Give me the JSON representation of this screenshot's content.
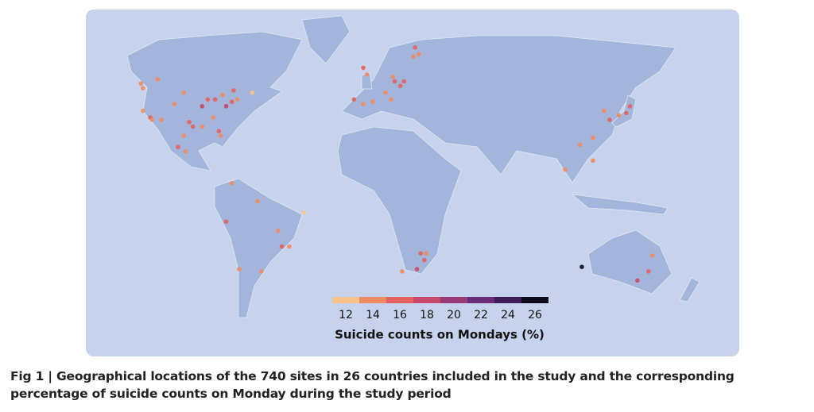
{
  "map": {
    "legend": {
      "title": "Suicide counts on Mondays (%)",
      "ticks": [
        12,
        14,
        16,
        18,
        20,
        22,
        24,
        26
      ],
      "colors": [
        "#f8c28a",
        "#ef8b62",
        "#e3625f",
        "#c8476c",
        "#993b78",
        "#6a2c79",
        "#3b1d58",
        "#0e0a1c"
      ]
    },
    "sites": [
      {
        "lon": -122,
        "lat": 37,
        "value": 15
      },
      {
        "lon": -118,
        "lat": 34,
        "value": 16
      },
      {
        "lon": -117,
        "lat": 33,
        "value": 14
      },
      {
        "lon": -112,
        "lat": 33,
        "value": 15
      },
      {
        "lon": -105,
        "lat": 40,
        "value": 14
      },
      {
        "lon": -97,
        "lat": 32,
        "value": 16
      },
      {
        "lon": -95,
        "lat": 30,
        "value": 17
      },
      {
        "lon": -90,
        "lat": 30,
        "value": 15
      },
      {
        "lon": -87,
        "lat": 42,
        "value": 16
      },
      {
        "lon": -84,
        "lat": 34,
        "value": 15
      },
      {
        "lon": -80,
        "lat": 26,
        "value": 14
      },
      {
        "lon": -77,
        "lat": 39,
        "value": 19
      },
      {
        "lon": -74,
        "lat": 41,
        "value": 16
      },
      {
        "lon": -71,
        "lat": 42,
        "value": 15
      },
      {
        "lon": -83,
        "lat": 42,
        "value": 16
      },
      {
        "lon": -90,
        "lat": 39,
        "value": 18
      },
      {
        "lon": -100,
        "lat": 45,
        "value": 14
      },
      {
        "lon": -122,
        "lat": 47,
        "value": 15
      },
      {
        "lon": -81,
        "lat": 28,
        "value": 16
      },
      {
        "lon": -79,
        "lat": 44,
        "value": 15
      },
      {
        "lon": -73,
        "lat": 46,
        "value": 16
      },
      {
        "lon": -114,
        "lat": 51,
        "value": 14
      },
      {
        "lon": -123,
        "lat": 49,
        "value": 15
      },
      {
        "lon": -63,
        "lat": 45,
        "value": 13
      },
      {
        "lon": -99,
        "lat": 19,
        "value": 15
      },
      {
        "lon": -103,
        "lat": 21,
        "value": 16
      },
      {
        "lon": -100,
        "lat": 26,
        "value": 14
      },
      {
        "lon": -74,
        "lat": 5,
        "value": 15
      },
      {
        "lon": -77,
        "lat": -12,
        "value": 16
      },
      {
        "lon": -70,
        "lat": -33,
        "value": 15
      },
      {
        "lon": -58,
        "lat": -34,
        "value": 14
      },
      {
        "lon": -47,
        "lat": -23,
        "value": 16
      },
      {
        "lon": -43,
        "lat": -23,
        "value": 15
      },
      {
        "lon": -35,
        "lat": -8,
        "value": 13
      },
      {
        "lon": -49,
        "lat": -16,
        "value": 14
      },
      {
        "lon": -60,
        "lat": -3,
        "value": 15
      },
      {
        "lon": -3,
        "lat": 40,
        "value": 15
      },
      {
        "lon": -8,
        "lat": 42,
        "value": 16
      },
      {
        "lon": 2,
        "lat": 41,
        "value": 14
      },
      {
        "lon": -1,
        "lat": 53,
        "value": 15
      },
      {
        "lon": -3,
        "lat": 56,
        "value": 16
      },
      {
        "lon": 12,
        "lat": 42,
        "value": 15
      },
      {
        "lon": 9,
        "lat": 45,
        "value": 14
      },
      {
        "lon": 14,
        "lat": 50,
        "value": 16
      },
      {
        "lon": 19,
        "lat": 50,
        "value": 17
      },
      {
        "lon": 24,
        "lat": 61,
        "value": 15
      },
      {
        "lon": 25,
        "lat": 65,
        "value": 16
      },
      {
        "lon": 27,
        "lat": 62,
        "value": 14
      },
      {
        "lon": 13,
        "lat": 52,
        "value": 15
      },
      {
        "lon": 17,
        "lat": 48,
        "value": 16
      },
      {
        "lon": 139,
        "lat": 36,
        "value": 16
      },
      {
        "lon": 135,
        "lat": 35,
        "value": 15
      },
      {
        "lon": 141,
        "lat": 39,
        "value": 17
      },
      {
        "lon": 130,
        "lat": 33,
        "value": 16
      },
      {
        "lon": 127,
        "lat": 37,
        "value": 15
      },
      {
        "lon": 121,
        "lat": 25,
        "value": 14
      },
      {
        "lon": 121,
        "lat": 15,
        "value": 15
      },
      {
        "lon": 106,
        "lat": 11,
        "value": 14
      },
      {
        "lon": 114,
        "lat": 22,
        "value": 15
      },
      {
        "lon": 28,
        "lat": -26,
        "value": 16
      },
      {
        "lon": 30,
        "lat": -29,
        "value": 17
      },
      {
        "lon": 18,
        "lat": -34,
        "value": 15
      },
      {
        "lon": 26,
        "lat": -33,
        "value": 18
      },
      {
        "lon": 31,
        "lat": -26,
        "value": 14
      },
      {
        "lon": 115,
        "lat": -32,
        "value": 26
      },
      {
        "lon": 151,
        "lat": -34,
        "value": 16
      },
      {
        "lon": 145,
        "lat": -38,
        "value": 18
      },
      {
        "lon": 153,
        "lat": -27,
        "value": 15
      }
    ]
  },
  "caption": "Fig 1 | Geographical locations of the 740 sites in 26 countries included in the study and the corresponding percentage of suicide counts on Monday during the study period"
}
